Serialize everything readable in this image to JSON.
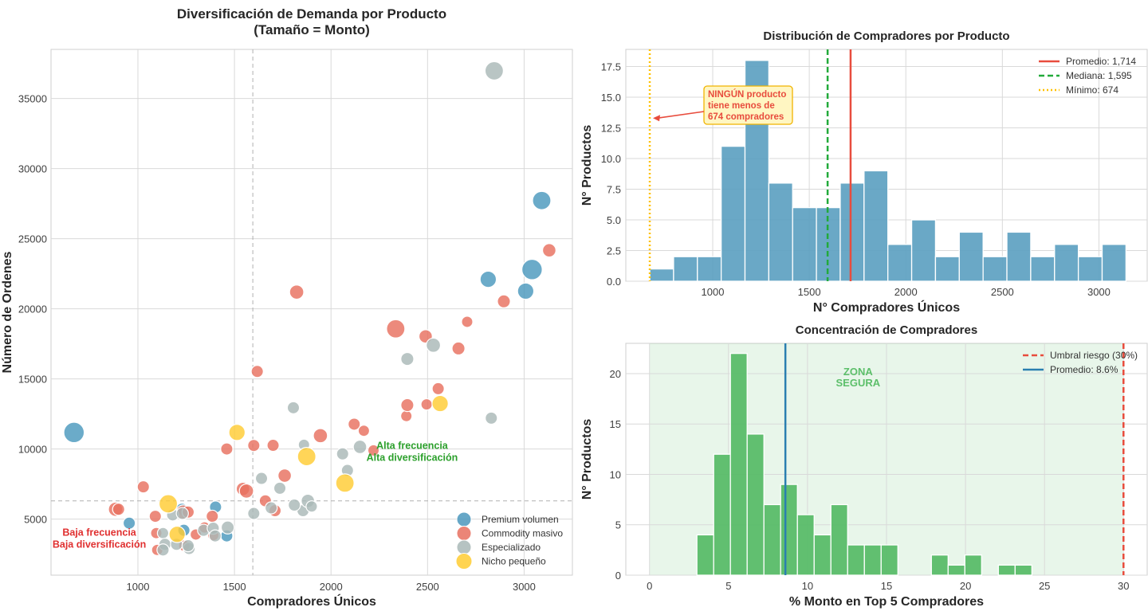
{
  "chart_data": [
    {
      "type": "scatter",
      "title": "Diversificación de Demanda por Producto",
      "subtitle": "(Tamaño = Monto)",
      "xlabel": "Compradores Únicos",
      "ylabel": "Número de Ordenes",
      "xlim": [
        550,
        3250
      ],
      "ylim": [
        1000,
        38500
      ],
      "xticks": [
        1000,
        1500,
        2000,
        2500,
        3000
      ],
      "yticks": [
        5000,
        10000,
        15000,
        20000,
        25000,
        30000,
        35000
      ],
      "grid": true,
      "reference_lines": {
        "x": 1595,
        "y": 6300
      },
      "annotations": [
        {
          "text": [
            "Baja frecuencia",
            "Baja diversificación"
          ],
          "color": "#e03030",
          "x": 800,
          "y": 3800
        },
        {
          "text": [
            "Alta frecuencia",
            "Alta diversificación"
          ],
          "color": "#2ca02c",
          "x": 2420,
          "y": 10000
        }
      ],
      "legend": {
        "position": "bottom-right"
      },
      "series": [
        {
          "name": "Premium volumen",
          "color": "#4b98bd",
          "points": [
            [
              669,
              11180,
              3
            ],
            [
              955,
              4710,
              1
            ],
            [
              1402,
              5860,
              1
            ],
            [
              2814,
              22100,
              2
            ],
            [
              3008,
              21260,
              2
            ],
            [
              3041,
              22800,
              3
            ],
            [
              3091,
              27720,
              2.5
            ],
            [
              1238,
              4200,
              1
            ],
            [
              1460,
              3800,
              1
            ],
            [
              1228,
              5700,
              1
            ]
          ]
        },
        {
          "name": "Commodity masivo",
          "color": "#e8705f",
          "points": [
            [
              884,
              5700,
              1.5
            ],
            [
              1028,
              7300,
              1
            ],
            [
              1090,
              5200,
              1
            ],
            [
              1095,
              4000,
              0.8
            ],
            [
              1100,
              2800,
              0.8
            ],
            [
              1235,
              5500,
              1.5
            ],
            [
              1260,
              5500,
              1
            ],
            [
              1300,
              3900,
              0.8
            ],
            [
              1345,
              4400,
              0.8
            ],
            [
              1385,
              5200,
              1
            ],
            [
              1460,
              10000,
              1
            ],
            [
              1544,
              7150,
              1.3
            ],
            [
              1562,
              7000,
              1.5
            ],
            [
              1600,
              10250,
              1
            ],
            [
              1618,
              15530,
              1
            ],
            [
              1660,
              6300,
              1
            ],
            [
              1700,
              10260,
              1
            ],
            [
              1710,
              5600,
              1
            ],
            [
              1760,
              8100,
              1.3
            ],
            [
              1822,
              21190,
              1.5
            ],
            [
              1945,
              10950,
              1.5
            ],
            [
              2120,
              11770,
              1
            ],
            [
              2170,
              11300,
              0.8
            ],
            [
              2220,
              9900,
              0.8
            ],
            [
              2335,
              18570,
              2.5
            ],
            [
              2390,
              12350,
              0.8
            ],
            [
              2395,
              13130,
              1.2
            ],
            [
              2490,
              18030,
              1.3
            ],
            [
              2495,
              13180,
              0.8
            ],
            [
              2555,
              14300,
              1
            ],
            [
              2660,
              17170,
              1.2
            ],
            [
              2705,
              19070,
              0.8
            ],
            [
              2895,
              20530,
              1.2
            ],
            [
              3130,
              24170,
              1.3
            ],
            [
              900,
              5700,
              1
            ],
            [
              1240,
              3100,
              0.8
            ],
            [
              1390,
              3850,
              0.8
            ]
          ]
        },
        {
          "name": "Especializado",
          "color": "#a9b8b7",
          "points": [
            [
              2845,
              36970,
              2.5
            ],
            [
              2395,
              16420,
              1.2
            ],
            [
              2530,
              17400,
              1.5
            ],
            [
              2830,
              12200,
              1
            ],
            [
              1805,
              12940,
              1
            ],
            [
              2150,
              10150,
              1.3
            ],
            [
              2060,
              9650,
              1
            ],
            [
              2085,
              8470,
              1
            ],
            [
              1640,
              7900,
              1
            ],
            [
              1735,
              7200,
              1
            ],
            [
              1690,
              5800,
              1
            ],
            [
              1855,
              5600,
              1
            ],
            [
              1880,
              6300,
              1.3
            ],
            [
              1600,
              5400,
              1
            ],
            [
              1810,
              6000,
              1
            ],
            [
              1180,
              5300,
              1
            ],
            [
              1130,
              4000,
              0.8
            ],
            [
              1140,
              3200,
              1
            ],
            [
              1130,
              2800,
              1
            ],
            [
              1200,
              3200,
              1
            ],
            [
              1265,
              2900,
              1
            ],
            [
              1260,
              3100,
              1
            ],
            [
              1340,
              4200,
              1
            ],
            [
              1390,
              4350,
              1
            ],
            [
              1400,
              3800,
              1
            ],
            [
              1465,
              4400,
              1.2
            ],
            [
              1230,
              5400,
              1
            ],
            [
              1900,
              5900,
              0.8
            ],
            [
              1860,
              10300,
              0.8
            ]
          ]
        },
        {
          "name": "Nicho pequeño",
          "color": "#ffcc33",
          "points": [
            [
              1513,
              11180,
              2
            ],
            [
              1157,
              6090,
              2.5
            ],
            [
              1203,
              3910,
              2
            ],
            [
              1874,
              9460,
              2.5
            ],
            [
              2072,
              7570,
              2.5
            ],
            [
              2565,
              13240,
              2
            ]
          ]
        }
      ]
    },
    {
      "type": "bar",
      "subtype": "histogram",
      "title": "Distribución de Compradores por Producto",
      "xlabel": "N° Compradores Únicos",
      "ylabel": "N° Productos",
      "xlim": [
        550,
        3250
      ],
      "ylim": [
        0,
        18.9
      ],
      "xticks": [
        1000,
        1500,
        2000,
        2500,
        3000
      ],
      "yticks": [
        0.0,
        2.5,
        5.0,
        7.5,
        10.0,
        12.5,
        15.0,
        17.5
      ],
      "yticklabels": [
        "0.0",
        "2.5",
        "5.0",
        "7.5",
        "10.0",
        "12.5",
        "15.0",
        "17.5"
      ],
      "bin_start": 674,
      "bin_end": 3140,
      "counts": [
        1,
        2,
        2,
        11,
        18,
        8,
        6,
        6,
        8,
        9,
        3,
        5,
        2,
        4,
        2,
        4,
        2,
        3,
        2,
        3
      ],
      "color": "#5a9fc0",
      "lines": [
        {
          "label": "Promedio: 1,714",
          "value": 1714,
          "color": "#e84c3d",
          "style": "solid"
        },
        {
          "label": "Mediana: 1,595",
          "value": 1595,
          "color": "#22aa3a",
          "style": "dashed"
        },
        {
          "label": "Mínimo: 674",
          "value": 674,
          "color": "#ffc000",
          "style": "dotted"
        }
      ],
      "annotation": {
        "text": [
          "NINGÚN producto",
          "tiene menos de",
          "674 compradores"
        ],
        "color": "#e84c3d",
        "box_color": "#fff6c2",
        "box_border": "#f0b400",
        "arrow_to": [
          674,
          13.3
        ]
      },
      "legend": {
        "position": "top-right"
      }
    },
    {
      "type": "bar",
      "subtype": "histogram",
      "title": "Concentración de Compradores",
      "xlabel": "% Monto en Top 5 Compradores",
      "ylabel": "N° Productos",
      "xlim": [
        -1.5,
        31.5
      ],
      "ylim": [
        0,
        23
      ],
      "xticks": [
        0,
        5,
        10,
        15,
        20,
        25,
        30
      ],
      "yticks": [
        0,
        5,
        10,
        15,
        20
      ],
      "bin_start": 3.0,
      "bin_end": 24.2,
      "counts": [
        4,
        12,
        22,
        14,
        7,
        9,
        6,
        4,
        7,
        3,
        3,
        3,
        0,
        0,
        2,
        1,
        2,
        0,
        1,
        1
      ],
      "color": "#52b963",
      "safe_zone": {
        "from": 0,
        "to": 30,
        "label": [
          "ZONA",
          "SEGURA"
        ],
        "color": "#5cbf6a"
      },
      "lines": [
        {
          "label": "Umbral riesgo (30%)",
          "value": 30,
          "color": "#e84c3d",
          "style": "dashed"
        },
        {
          "label": "Promedio: 8.6%",
          "value": 8.6,
          "color": "#2a7fb0",
          "style": "solid"
        }
      ],
      "legend": {
        "position": "top-right"
      }
    }
  ]
}
